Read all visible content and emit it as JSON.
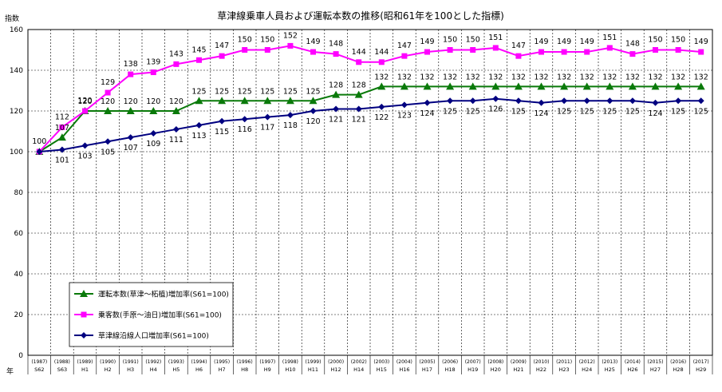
{
  "chart_data": {
    "type": "line",
    "title": "草津線乗車人員および運転本数の推移(昭和61年を100とした指標)",
    "ylabel": "指数",
    "xlabel": "年",
    "ylim": [
      0,
      160
    ],
    "y_ticks": [
      0,
      20,
      40,
      60,
      80,
      100,
      120,
      140,
      160
    ],
    "grid": true,
    "legend_position": "bottom-left",
    "categories": [
      {
        "year": "(1987)",
        "era": "S62"
      },
      {
        "year": "(1988)",
        "era": "S63"
      },
      {
        "year": "(1989)",
        "era": "H1"
      },
      {
        "year": "(1990)",
        "era": "H2"
      },
      {
        "year": "(1991)",
        "era": "H3"
      },
      {
        "year": "(1992)",
        "era": "H4"
      },
      {
        "year": "(1993)",
        "era": "H5"
      },
      {
        "year": "(1994)",
        "era": "H6"
      },
      {
        "year": "(1995)",
        "era": "H7"
      },
      {
        "year": "(1996)",
        "era": "H8"
      },
      {
        "year": "(1997)",
        "era": "H9"
      },
      {
        "year": "(1998)",
        "era": "H10"
      },
      {
        "year": "(1999)",
        "era": "H11"
      },
      {
        "year": "(2000)",
        "era": "H12"
      },
      {
        "year": "(2002)",
        "era": "H14"
      },
      {
        "year": "(2003)",
        "era": "H15"
      },
      {
        "year": "(2004)",
        "era": "H16"
      },
      {
        "year": "(2005)",
        "era": "H17"
      },
      {
        "year": "(2006)",
        "era": "H18"
      },
      {
        "year": "(2007)",
        "era": "H19"
      },
      {
        "year": "(2008)",
        "era": "H20"
      },
      {
        "year": "(2009)",
        "era": "H21"
      },
      {
        "year": "(2010)",
        "era": "H22"
      },
      {
        "year": "(2011)",
        "era": "H23"
      },
      {
        "year": "(2012)",
        "era": "H24"
      },
      {
        "year": "(2013)",
        "era": "H25"
      },
      {
        "year": "(2014)",
        "era": "H26"
      },
      {
        "year": "(2015)",
        "era": "H27"
      },
      {
        "year": "(2016)",
        "era": "H28"
      },
      {
        "year": "(2017)",
        "era": "H29"
      }
    ],
    "series": [
      {
        "name": "運転本数(草津～柘植)増加率(S61=100)",
        "color": "#0a7a0a",
        "marker": "triangle",
        "values": [
          100,
          107,
          120,
          120,
          120,
          120,
          120,
          125,
          125,
          125,
          125,
          125,
          125,
          128,
          128,
          132,
          132,
          132,
          132,
          132,
          132,
          132,
          132,
          132,
          132,
          132,
          132,
          132,
          132,
          132
        ],
        "labels": [
          "",
          "107",
          "120",
          "120",
          "120",
          "120",
          "120",
          "125",
          "125",
          "125",
          "125",
          "125",
          "125",
          "128",
          "128",
          "132",
          "132",
          "132",
          "132",
          "132",
          "132",
          "132",
          "132",
          "132",
          "132",
          "132",
          "132",
          "132",
          "132",
          "132"
        ]
      },
      {
        "name": "乗客数(手原～油日)増加率(S61=100)",
        "color": "#ff00ff",
        "marker": "square",
        "values": [
          100,
          112,
          120,
          129,
          138,
          139,
          143,
          145,
          147,
          150,
          150,
          152,
          149,
          148,
          144,
          144,
          147,
          149,
          150,
          150,
          151,
          147,
          149,
          149,
          149,
          151,
          148,
          150,
          150,
          149
        ],
        "labels": [
          "100",
          "112",
          "120",
          "129",
          "138",
          "139",
          "143",
          "145",
          "147",
          "150",
          "150",
          "152",
          "149",
          "148",
          "144",
          "144",
          "147",
          "149",
          "150",
          "150",
          "151",
          "147",
          "149",
          "149",
          "149",
          "151",
          "148",
          "150",
          "150",
          "149"
        ]
      },
      {
        "name": "草津線沿線人口増加率(S61=100)",
        "color": "#000080",
        "marker": "diamond",
        "values": [
          100,
          101,
          103,
          105,
          107,
          109,
          111,
          113,
          115,
          116,
          117,
          118,
          120,
          121,
          121,
          122,
          123,
          124,
          125,
          125,
          126,
          125,
          124,
          125,
          125,
          125,
          125,
          124,
          125,
          125
        ],
        "labels": [
          "",
          "101",
          "103",
          "105",
          "107",
          "109",
          "111",
          "113",
          "115",
          "116",
          "117",
          "118",
          "120",
          "121",
          "121",
          "122",
          "123",
          "124",
          "125",
          "125",
          "126",
          "125",
          "124",
          "125",
          "125",
          "125",
          "125",
          "124",
          "125",
          "125"
        ]
      }
    ]
  }
}
